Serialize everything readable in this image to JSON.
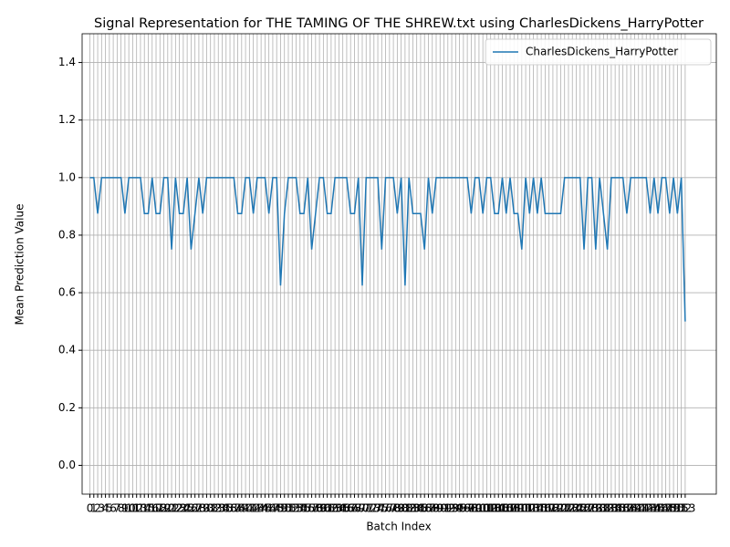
{
  "chart_data": {
    "type": "line",
    "title": "Signal Representation for THE TAMING OF THE SHREW.txt using CharlesDickens_HarryPotter",
    "xlabel": "Batch Index",
    "ylabel": "Mean Prediction Value",
    "x": [
      0,
      1,
      2,
      3,
      4,
      5,
      6,
      7,
      8,
      9,
      10,
      11,
      12,
      13,
      14,
      15,
      16,
      17,
      18,
      19,
      20,
      21,
      22,
      23,
      24,
      25,
      26,
      27,
      28,
      29,
      30,
      31,
      32,
      33,
      34,
      35,
      36,
      37,
      38,
      39,
      40,
      41,
      42,
      43,
      44,
      45,
      46,
      47,
      48,
      49,
      50,
      51,
      52,
      53,
      54,
      55,
      56,
      57,
      58,
      59,
      60,
      61,
      62,
      63,
      64,
      65,
      66,
      67,
      68,
      69,
      70,
      71,
      72,
      73,
      74,
      75,
      76,
      77,
      78,
      79,
      80,
      81,
      82,
      83,
      84,
      85,
      86,
      87,
      88,
      89,
      90,
      91,
      92,
      93,
      94,
      95,
      96,
      97,
      98,
      99,
      100,
      101,
      102,
      103,
      104,
      105,
      106,
      107,
      108,
      109,
      110,
      111,
      112,
      113,
      114,
      115,
      116,
      117,
      118,
      119,
      120,
      121,
      122,
      123,
      124,
      125,
      126,
      127,
      128,
      129,
      130,
      131,
      132,
      133,
      134,
      135,
      136,
      137,
      138,
      139,
      140,
      141,
      142,
      143,
      144,
      145,
      146,
      147,
      148,
      149,
      150,
      151,
      152,
      153
    ],
    "series": [
      {
        "name": "CharlesDickens_HarryPotter",
        "color": "#1f77b4",
        "values": [
          1,
          1,
          0.875,
          1,
          1,
          1,
          1,
          1,
          1,
          0.875,
          1,
          1,
          1,
          1,
          0.875,
          0.875,
          1,
          0.875,
          0.875,
          1,
          1,
          0.75,
          1,
          0.875,
          0.875,
          1,
          0.75,
          0.875,
          1,
          0.875,
          1,
          1,
          1,
          1,
          1,
          1,
          1,
          1,
          0.875,
          0.875,
          1,
          1,
          0.875,
          1,
          1,
          1,
          0.875,
          1,
          1,
          0.625,
          0.875,
          1,
          1,
          1,
          0.875,
          0.875,
          1,
          0.75,
          0.875,
          1,
          1,
          0.875,
          0.875,
          1,
          1,
          1,
          1,
          0.875,
          0.875,
          1,
          0.625,
          1,
          1,
          1,
          1,
          0.75,
          1,
          1,
          1,
          0.875,
          1,
          0.625,
          1,
          0.875,
          0.875,
          0.875,
          0.75,
          1,
          0.875,
          1,
          1,
          1,
          1,
          1,
          1,
          1,
          1,
          1,
          0.875,
          1,
          1,
          0.875,
          1,
          1,
          0.875,
          0.875,
          1,
          0.875,
          1,
          0.875,
          0.875,
          0.75,
          1,
          0.875,
          1,
          0.875,
          1,
          0.875,
          0.875,
          0.875,
          0.875,
          0.875,
          1,
          1,
          1,
          1,
          1,
          0.75,
          1,
          1,
          0.75,
          1,
          0.875,
          0.75,
          1,
          1,
          1,
          1,
          0.875,
          1,
          1,
          1,
          1,
          1,
          0.875,
          1,
          0.875,
          1,
          1,
          0.875,
          1,
          0.875,
          1,
          0.5
        ]
      }
    ],
    "xlim": [
      -2,
      161
    ],
    "ylim": [
      -0.1,
      1.5
    ],
    "xticks": [
      0,
      1,
      2,
      3,
      4,
      5,
      6,
      7,
      8,
      9,
      10,
      11,
      12,
      13,
      14,
      15,
      16,
      17,
      18,
      19,
      20,
      21,
      22,
      23,
      24,
      25,
      26,
      27,
      28,
      29,
      30,
      31,
      32,
      33,
      34,
      35,
      36,
      37,
      38,
      39,
      40,
      41,
      42,
      43,
      44,
      45,
      46,
      47,
      48,
      49,
      50,
      51,
      52,
      53,
      54,
      55,
      56,
      57,
      58,
      59,
      60,
      61,
      62,
      63,
      64,
      65,
      66,
      67,
      68,
      69,
      70,
      71,
      72,
      73,
      74,
      75,
      76,
      77,
      78,
      79,
      80,
      81,
      82,
      83,
      84,
      85,
      86,
      87,
      88,
      89,
      90,
      91,
      92,
      93,
      94,
      95,
      96,
      97,
      98,
      99,
      100,
      101,
      102,
      103,
      104,
      105,
      106,
      107,
      108,
      109,
      110,
      111,
      112,
      113,
      114,
      115,
      116,
      117,
      118,
      119,
      120,
      121,
      122,
      123,
      124,
      125,
      126,
      127,
      128,
      129,
      130,
      131,
      132,
      133,
      134,
      135,
      136,
      137,
      138,
      139,
      140,
      141,
      142,
      143,
      144,
      145,
      146,
      147,
      148,
      149,
      150,
      151,
      152,
      153
    ],
    "yticks": [
      {
        "value": 0,
        "label": "0.0"
      },
      0.2,
      0.4,
      0.6,
      0.8,
      {
        "value": 1,
        "label": "1.0"
      },
      1.2,
      1.4
    ],
    "grid": true,
    "legend": "upper right"
  }
}
